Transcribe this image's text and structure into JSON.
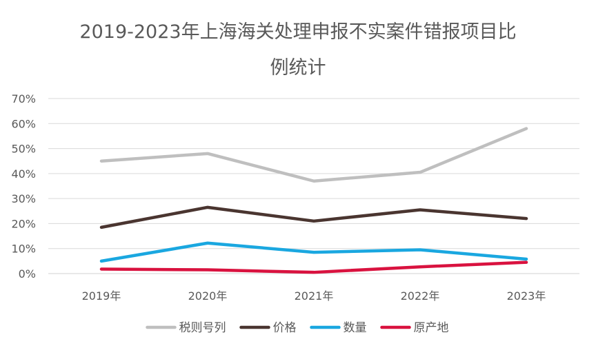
{
  "chart_data": {
    "type": "line",
    "title_line1": "2019-2023年上海海关处理申报不实案件错报项目比",
    "title_line2": "例统计",
    "categories": [
      "2019年",
      "2020年",
      "2021年",
      "2022年",
      "2023年"
    ],
    "ylim": [
      0,
      0.7
    ],
    "yticks": [
      "0%",
      "10%",
      "20%",
      "30%",
      "40%",
      "50%",
      "60%",
      "70%"
    ],
    "grid": true,
    "legend_position": "bottom",
    "series": [
      {
        "name": "税则号列",
        "color": "#bfbfbf",
        "values": [
          0.45,
          0.48,
          0.37,
          0.405,
          0.58
        ]
      },
      {
        "name": "价格",
        "color": "#4a3530",
        "values": [
          0.185,
          0.265,
          0.21,
          0.255,
          0.22
        ]
      },
      {
        "name": "数量",
        "color": "#1aa7e0",
        "values": [
          0.05,
          0.122,
          0.085,
          0.095,
          0.058
        ]
      },
      {
        "name": "原产地",
        "color": "#d9123f",
        "values": [
          0.018,
          0.015,
          0.005,
          0.027,
          0.045
        ]
      }
    ]
  }
}
